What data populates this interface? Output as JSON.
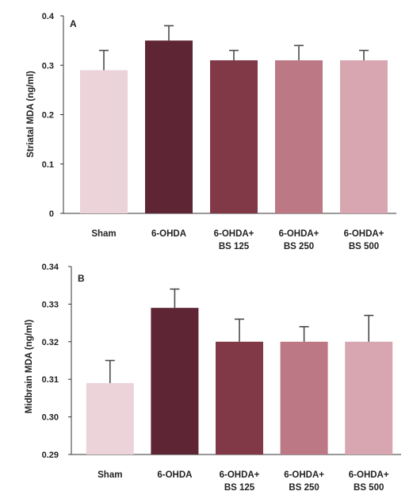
{
  "chart_data": [
    {
      "type": "bar",
      "panel_label": "A",
      "categories": [
        [
          "Sham"
        ],
        [
          "6-OHDA"
        ],
        [
          "6-OHDA+",
          "BS 125"
        ],
        [
          "6-OHDA+",
          "BS 250"
        ],
        [
          "6-OHDA+",
          "BS 500"
        ]
      ],
      "series": [
        {
          "values": [
            0.29,
            0.35,
            0.31,
            0.31,
            0.31
          ],
          "errors": [
            0.04,
            0.03,
            0.02,
            0.03,
            0.02
          ]
        }
      ],
      "ylabel": "Striatal MDA (ng/ml)",
      "ylim": [
        0,
        0.4
      ],
      "yticks": [
        "0",
        "0.1",
        "0.2",
        "0.3",
        "0.4"
      ],
      "grid": false,
      "bar_colors": [
        "#ecd3d9",
        "#5e2534",
        "#813847",
        "#bd7886",
        "#d8a6b0"
      ]
    },
    {
      "type": "bar",
      "panel_label": "B",
      "categories": [
        [
          "Sham"
        ],
        [
          "6-OHDA"
        ],
        [
          "6-OHDA+",
          "BS 125"
        ],
        [
          "6-OHDA+",
          "BS 250"
        ],
        [
          "6-OHDA+",
          "BS 500"
        ]
      ],
      "series": [
        {
          "values": [
            0.309,
            0.329,
            0.32,
            0.32,
            0.32
          ],
          "errors": [
            0.006,
            0.005,
            0.006,
            0.004,
            0.007
          ]
        }
      ],
      "ylabel": "Midbrain MDA (ng/ml)",
      "ylim": [
        0.29,
        0.34
      ],
      "yticks": [
        "0.29",
        "0.30",
        "0.31",
        "0.32",
        "0.33",
        "0.34"
      ],
      "grid": false,
      "bar_colors": [
        "#ecd3d9",
        "#5e2534",
        "#813847",
        "#bd7886",
        "#d8a6b0"
      ]
    }
  ]
}
